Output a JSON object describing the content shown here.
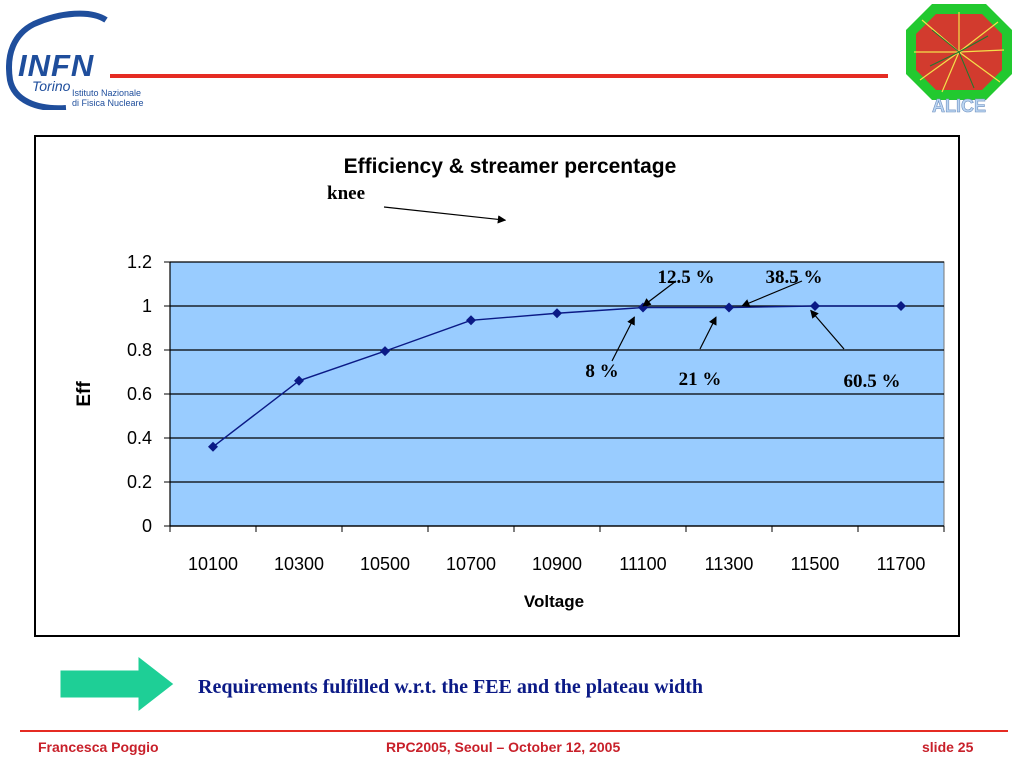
{
  "header": {
    "logo_left": {
      "name": "INFN",
      "subtitle": "Torino",
      "institute_line1": "Istituto Nazionale",
      "institute_line2": "di Fisica Nucleare"
    },
    "logo_right": {
      "name": "ALICE"
    },
    "accent_color": "#e52b23"
  },
  "chart_data": {
    "type": "line",
    "title": "Efficiency & streamer percentage",
    "xlabel": "Voltage",
    "ylabel": "Eff",
    "categories": [
      "10100",
      "10300",
      "10500",
      "10700",
      "10900",
      "11100",
      "11300",
      "11500",
      "11700"
    ],
    "x_range": [
      10000,
      11800
    ],
    "ylim": [
      0,
      1.2
    ],
    "yticks": [
      "0",
      "0.2",
      "0.4",
      "0.6",
      "0.8",
      "1",
      "1.2"
    ],
    "grid": true,
    "plot_background": "#99ccff",
    "series": [
      {
        "name": "",
        "color": "#0b1a86",
        "x": [
          10100,
          10300,
          10500,
          10700,
          10900,
          11100,
          11300,
          11500,
          11700
        ],
        "y": [
          0.36,
          0.66,
          0.795,
          0.935,
          0.967,
          0.993,
          0.993,
          1.0,
          1.0
        ]
      }
    ],
    "annotations": [
      {
        "text": "knee",
        "points_to": {
          "x": 10780,
          "y": 1.39
        }
      },
      {
        "text": "12.5 %",
        "points_to": {
          "x": 11100,
          "y": 1.0
        }
      },
      {
        "text": "38.5 %",
        "points_to": {
          "x": 11330,
          "y": 1.0
        }
      },
      {
        "text": "8 %",
        "points_to": {
          "x": 11080,
          "y": 0.95
        }
      },
      {
        "text": "21 %",
        "points_to": {
          "x": 11270,
          "y": 0.95
        }
      },
      {
        "text": "60.5 %",
        "points_to": {
          "x": 11490,
          "y": 0.98
        }
      }
    ]
  },
  "conclusion": {
    "text": "Requirements fulfilled w.r.t. the FEE and the plateau width",
    "arrow_color": "#1ecf96"
  },
  "footer": {
    "author": "Francesca Poggio",
    "event": "RPC2005, Seoul – October 12, 2005",
    "slide": "slide 25"
  }
}
